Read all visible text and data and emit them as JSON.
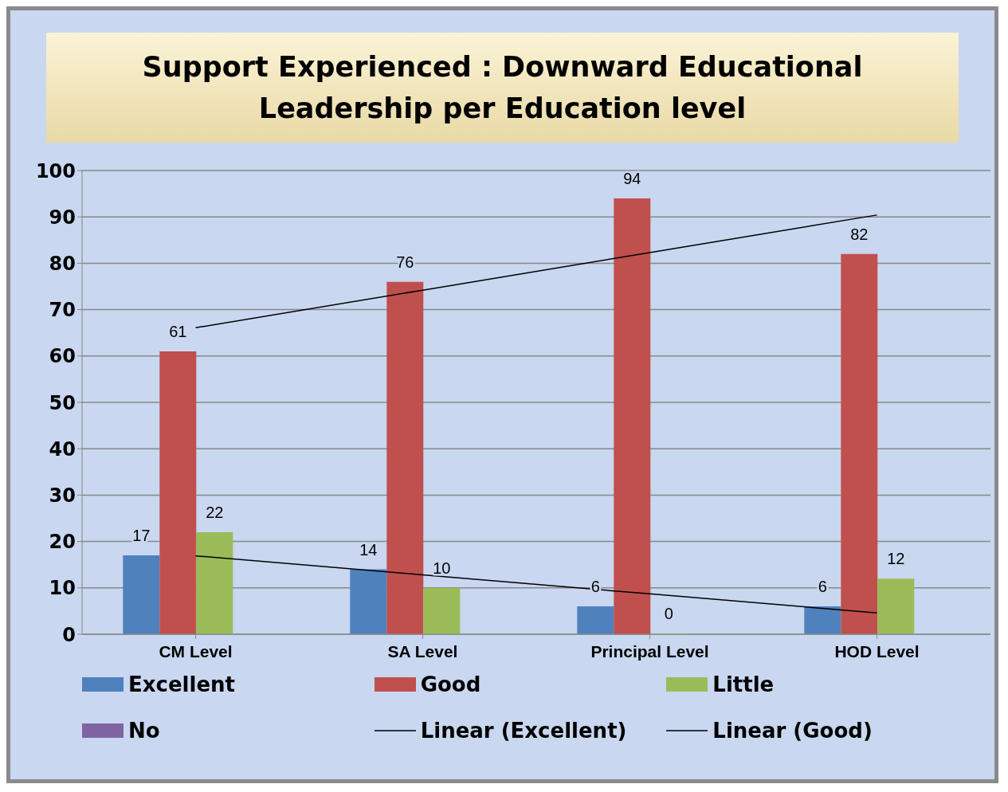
{
  "chart_data": {
    "type": "bar",
    "title": "Support Experienced : Downward Educational Leadership per Education level",
    "categories": [
      "CM Level",
      "SA Level",
      "Principal Level",
      "HOD Level"
    ],
    "series": [
      {
        "name": "Excellent",
        "color": "#4f81bd",
        "values": [
          17,
          14,
          6,
          6
        ],
        "value_labels": [
          "17",
          "14",
          "6",
          "6"
        ]
      },
      {
        "name": "Good",
        "color": "#c0504d",
        "values": [
          61,
          76,
          94,
          82
        ],
        "value_labels": [
          "61",
          "76",
          "94",
          "82"
        ]
      },
      {
        "name": "Little",
        "color": "#9bbb59",
        "values": [
          22,
          10,
          0,
          12
        ],
        "value_labels": [
          "22",
          "10",
          "0",
          "12"
        ]
      },
      {
        "name": "No",
        "color": "#8064a2",
        "values": [
          null,
          null,
          null,
          null
        ]
      },
      {
        "name": "Linear (Excellent)",
        "type": "line",
        "color": "#000000",
        "values": [
          16.9,
          12.8,
          8.7,
          4.6
        ]
      },
      {
        "name": "Linear (Good)",
        "type": "line",
        "color": "#000000",
        "values": [
          66.1,
          74.2,
          82.3,
          90.4
        ]
      }
    ],
    "ylim": [
      0,
      100
    ],
    "yticks": [
      0,
      10,
      20,
      30,
      40,
      50,
      60,
      70,
      80,
      90,
      100
    ],
    "grid": "y",
    "legend": "bottom",
    "marker": "none",
    "line_style": "solid"
  }
}
